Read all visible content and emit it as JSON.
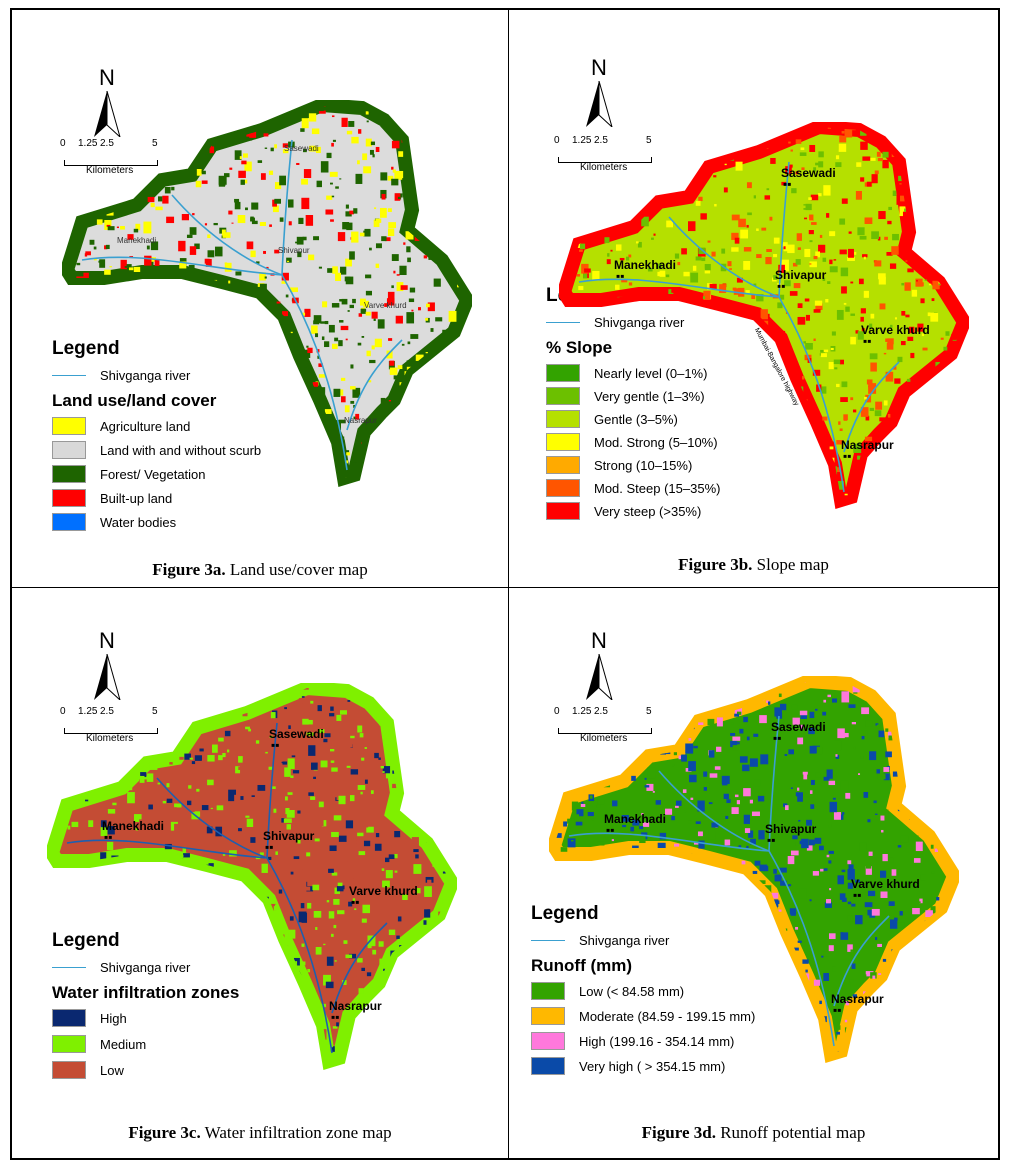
{
  "panels": [
    {
      "caption_bold": "Figure 3a.",
      "caption_text": " Land use/cover map",
      "north": "N",
      "scale": {
        "ticks": [
          "0",
          "1.25",
          "2.5",
          "5"
        ],
        "unit": "Kilometers"
      },
      "legend": {
        "title": "Legend",
        "river": "Shivganga river",
        "subtitle": "Land use/land cover",
        "items": [
          {
            "label": "Agriculture land",
            "color": "#ffff00"
          },
          {
            "label": "Land with and without scurb",
            "color": "#d9d9d9"
          },
          {
            "label": "Forest/ Vegetation",
            "color": "#1e6400"
          },
          {
            "label": "Built-up land",
            "color": "#ff0000"
          },
          {
            "label": "Water bodies",
            "color": "#0070ff"
          }
        ]
      },
      "base": "#dcdcdc",
      "speckle": [
        "#1e6400",
        "#ffff00",
        "#ff0000",
        "#1e6400"
      ],
      "rim": "#1e6400",
      "towns": [
        "Sasewadi",
        "Manekhadi",
        "Shivapur",
        "Varve khurd",
        "Nasrapur"
      ],
      "highway": ""
    },
    {
      "caption_bold": "Figure 3b.",
      "caption_text": " Slope map",
      "north": "N",
      "scale": {
        "ticks": [
          "0",
          "1.25",
          "2.5",
          "5"
        ],
        "unit": "Kilometers"
      },
      "legend": {
        "title": "Legend",
        "river": "Shivganga river",
        "subtitle": "% Slope",
        "items": [
          {
            "label": "Nearly level (0–1%)",
            "color": "#33a300"
          },
          {
            "label": "Very gentle (1–3%)",
            "color": "#6cc000"
          },
          {
            "label": "Gentle (3–5%)",
            "color": "#b5e000"
          },
          {
            "label": "Mod. Strong (5–10%)",
            "color": "#ffff00"
          },
          {
            "label": "Strong (10–15%)",
            "color": "#ffaa00"
          },
          {
            "label": "Mod. Steep (15–35%)",
            "color": "#ff5500"
          },
          {
            "label": "Very steep (>35%)",
            "color": "#ff0000"
          }
        ]
      },
      "base": "#b5e000",
      "speckle": [
        "#ff5500",
        "#ffff00",
        "#6cc000",
        "#ff0000"
      ],
      "rim": "#ff0000",
      "towns": [
        "Sasewadi",
        "Manekhadi",
        "Shivapur",
        "Varve khurd",
        "Nasrapur"
      ],
      "highway": "Mumbai-Bangalore highway"
    },
    {
      "caption_bold": "Figure 3c.",
      "caption_text": " Water infiltration zone map",
      "north": "N",
      "scale": {
        "ticks": [
          "0",
          "1.25",
          "2.5",
          "5"
        ],
        "unit": "Kilometers"
      },
      "legend": {
        "title": "Legend",
        "river": "Shivganga river",
        "subtitle": "Water infiltration zones",
        "items": [
          {
            "label": "High",
            "color": "#0a2870"
          },
          {
            "label": "Medium",
            "color": "#7ff000"
          },
          {
            "label": "Low",
            "color": "#c44c34"
          }
        ]
      },
      "base": "#c44c34",
      "speckle": [
        "#7ff000",
        "#0a2870",
        "#7ff000",
        "#c44c34"
      ],
      "rim": "#7ff000",
      "towns": [
        "Sasewadi",
        "Manekhadi",
        "Shivapur",
        "Varve khurd",
        "Nasrapur"
      ],
      "highway": ""
    },
    {
      "caption_bold": "Figure 3d.",
      "caption_text": " Runoff potential map",
      "north": "N",
      "scale": {
        "ticks": [
          "0",
          "1.25",
          "2.5",
          "5"
        ],
        "unit": "Kilometers"
      },
      "legend": {
        "title": "Legend",
        "river": "Shivganga river",
        "subtitle": "Runoff (mm)",
        "items": [
          {
            "label": "Low (< 84.58 mm)",
            "color": "#33a300"
          },
          {
            "label": "Moderate (84.59 - 199.15 mm)",
            "color": "#ffb800"
          },
          {
            "label": "High (199.16 - 354.14 mm)",
            "color": "#ff78dc"
          },
          {
            "label": "Very high ( > 354.15 mm)",
            "color": "#0a4aa8"
          }
        ]
      },
      "base": "#33a300",
      "speckle": [
        "#ff78dc",
        "#0a4aa8",
        "#0a4aa8",
        "#33a300"
      ],
      "rim": "#ffb800",
      "towns": [
        "Sasewadi",
        "Manekhadi",
        "Shivapur",
        "Varve khurd",
        "Nasrapur"
      ],
      "highway": ""
    }
  ]
}
